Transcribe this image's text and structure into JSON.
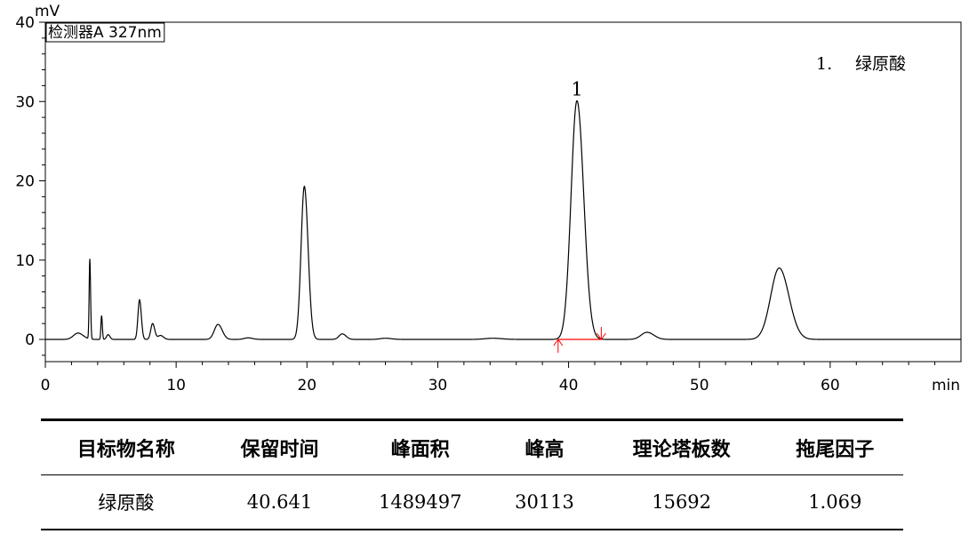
{
  "chart_data": {
    "type": "line",
    "detector_label": "检测器A 327nm",
    "y_unit": "mV",
    "x_unit": "min",
    "xlim": [
      0,
      70
    ],
    "ylim": [
      -2.8,
      40
    ],
    "x_ticks": [
      0,
      10,
      20,
      30,
      40,
      50,
      60
    ],
    "y_ticks": [
      0,
      10,
      20,
      30,
      40
    ],
    "line_color": "#000000",
    "marker_color": "#ff0000",
    "peaks": [
      {
        "rt": 2.5,
        "height": 0.8,
        "width": 0.35
      },
      {
        "rt": 3.4,
        "height": 10.1,
        "width": 0.05
      },
      {
        "rt": 4.3,
        "height": 3.0,
        "width": 0.05
      },
      {
        "rt": 4.8,
        "height": 0.6,
        "width": 0.12
      },
      {
        "rt": 7.2,
        "height": 5.0,
        "width": 0.12
      },
      {
        "rt": 8.2,
        "height": 2.0,
        "width": 0.14
      },
      {
        "rt": 8.8,
        "height": 0.5,
        "width": 0.2
      },
      {
        "rt": 13.2,
        "height": 1.9,
        "width": 0.28
      },
      {
        "rt": 15.5,
        "height": 0.2,
        "width": 0.3
      },
      {
        "rt": 19.8,
        "height": 19.3,
        "width": 0.25
      },
      {
        "rt": 22.7,
        "height": 0.7,
        "width": 0.25
      },
      {
        "rt": 26.0,
        "height": 0.15,
        "width": 0.4
      },
      {
        "rt": 34.2,
        "height": 0.15,
        "width": 0.6
      },
      {
        "rt": 40.641,
        "height": 30.1,
        "width": 0.45
      },
      {
        "rt": 46.0,
        "height": 0.9,
        "width": 0.45
      },
      {
        "rt": 56.1,
        "height": 9.0,
        "width": 0.65
      }
    ],
    "integration_markers": [
      39.2,
      42.5
    ],
    "peak_labels": [
      {
        "rt": 40.641,
        "height": 30.1,
        "label": "1"
      }
    ],
    "legend": {
      "number": "1.",
      "name": "绿原酸"
    }
  },
  "table": {
    "headers": [
      "目标物名称",
      "保留时间",
      "峰面积",
      "峰高",
      "理论塔板数",
      "拖尾因子"
    ],
    "rows": [
      [
        "绿原酸",
        "40.641",
        "1489497",
        "30113",
        "15692",
        "1.069"
      ]
    ]
  }
}
